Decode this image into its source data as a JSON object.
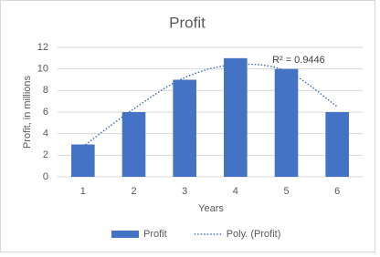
{
  "chart_data": {
    "type": "bar",
    "title": "Profit",
    "x_label": "Years",
    "y_label": "Profit, in millions",
    "categories": [
      "1",
      "2",
      "3",
      "4",
      "5",
      "6"
    ],
    "series": [
      {
        "name": "Profit",
        "type": "bar",
        "color": "#4472c4",
        "values": [
          3,
          6,
          9,
          11,
          10,
          6
        ]
      },
      {
        "name": "Poly. (Profit)",
        "type": "trendline",
        "color": "#4472c4",
        "values": [
          2.8,
          6.3,
          9.2,
          10.4,
          9.8,
          6.5
        ]
      }
    ],
    "annotation": "R² = 0.9446",
    "ylim": [
      0,
      12
    ],
    "yticks": [
      0,
      2,
      4,
      6,
      8,
      10,
      12
    ],
    "grid": true,
    "legend": "bottom"
  }
}
